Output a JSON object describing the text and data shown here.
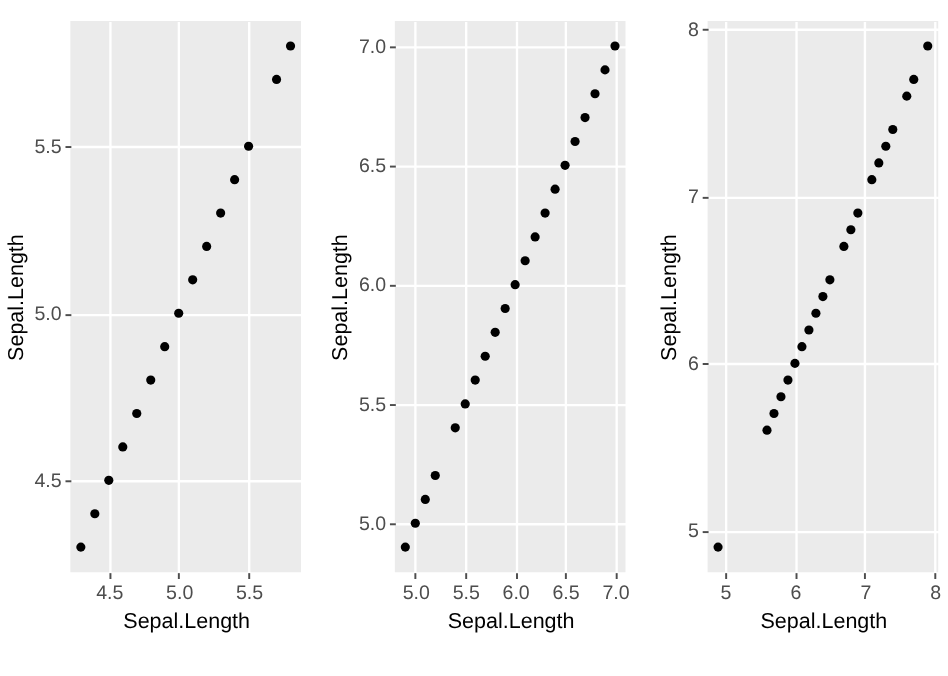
{
  "chart_data": [
    {
      "type": "scatter",
      "xlabel": "Sepal.Length",
      "ylabel": "Sepal.Length",
      "marker": "circle",
      "grid": true,
      "xlim": [
        4.225,
        5.875
      ],
      "ylim": [
        4.225,
        5.875
      ],
      "xticks": [
        4.5,
        {
          "value": 5,
          "label": "5.0"
        },
        5.5
      ],
      "yticks": [
        4.5,
        {
          "value": 5,
          "label": "5.0"
        },
        5.5
      ],
      "series": [
        {
          "color": "#000000",
          "x": [
            4.3,
            4.4,
            4.5,
            4.6,
            4.7,
            4.8,
            4.9,
            5.0,
            5.1,
            5.2,
            5.3,
            5.4,
            5.5,
            5.7,
            5.8
          ],
          "values": [
            4.3,
            4.4,
            4.5,
            4.6,
            4.7,
            4.8,
            4.9,
            5.0,
            5.1,
            5.2,
            5.3,
            5.4,
            5.5,
            5.7,
            5.8
          ]
        }
      ]
    },
    {
      "type": "scatter",
      "xlabel": "Sepal.Length",
      "ylabel": "Sepal.Length",
      "marker": "circle",
      "grid": true,
      "xlim": [
        4.795,
        7.105
      ],
      "ylim": [
        4.795,
        7.105
      ],
      "xticks": [
        {
          "value": 5,
          "label": "5.0"
        },
        5.5,
        {
          "value": 6,
          "label": "6.0"
        },
        6.5,
        {
          "value": 7,
          "label": "7.0"
        }
      ],
      "yticks": [
        {
          "value": 5,
          "label": "5.0"
        },
        5.5,
        {
          "value": 6,
          "label": "6.0"
        },
        6.5,
        {
          "value": 7,
          "label": "7.0"
        }
      ],
      "series": [
        {
          "color": "#000000",
          "x": [
            4.9,
            5.0,
            5.1,
            5.2,
            5.4,
            5.5,
            5.6,
            5.7,
            5.8,
            5.9,
            6.0,
            6.1,
            6.2,
            6.3,
            6.4,
            6.5,
            6.6,
            6.7,
            6.8,
            6.9,
            7.0
          ],
          "values": [
            4.9,
            5.0,
            5.1,
            5.2,
            5.4,
            5.5,
            5.6,
            5.7,
            5.8,
            5.9,
            6.0,
            6.1,
            6.2,
            6.3,
            6.4,
            6.5,
            6.6,
            6.7,
            6.8,
            6.9,
            7.0
          ]
        }
      ]
    },
    {
      "type": "scatter",
      "xlabel": "Sepal.Length",
      "ylabel": "Sepal.Length",
      "marker": "circle",
      "grid": true,
      "xlim": [
        4.75,
        8.05
      ],
      "ylim": [
        4.75,
        8.05
      ],
      "xticks": [
        5,
        6,
        7,
        8
      ],
      "yticks": [
        5,
        6,
        7,
        8
      ],
      "series": [
        {
          "color": "#000000",
          "x": [
            4.9,
            5.6,
            5.7,
            5.8,
            5.9,
            6.0,
            6.1,
            6.2,
            6.3,
            6.4,
            6.5,
            6.7,
            6.8,
            6.9,
            7.1,
            7.2,
            7.3,
            7.4,
            7.6,
            7.7,
            7.9
          ],
          "values": [
            4.9,
            5.6,
            5.7,
            5.8,
            5.9,
            6.0,
            6.1,
            6.2,
            6.3,
            6.4,
            6.5,
            6.7,
            6.8,
            6.9,
            7.1,
            7.2,
            7.3,
            7.4,
            7.6,
            7.7,
            7.9
          ]
        }
      ]
    }
  ]
}
